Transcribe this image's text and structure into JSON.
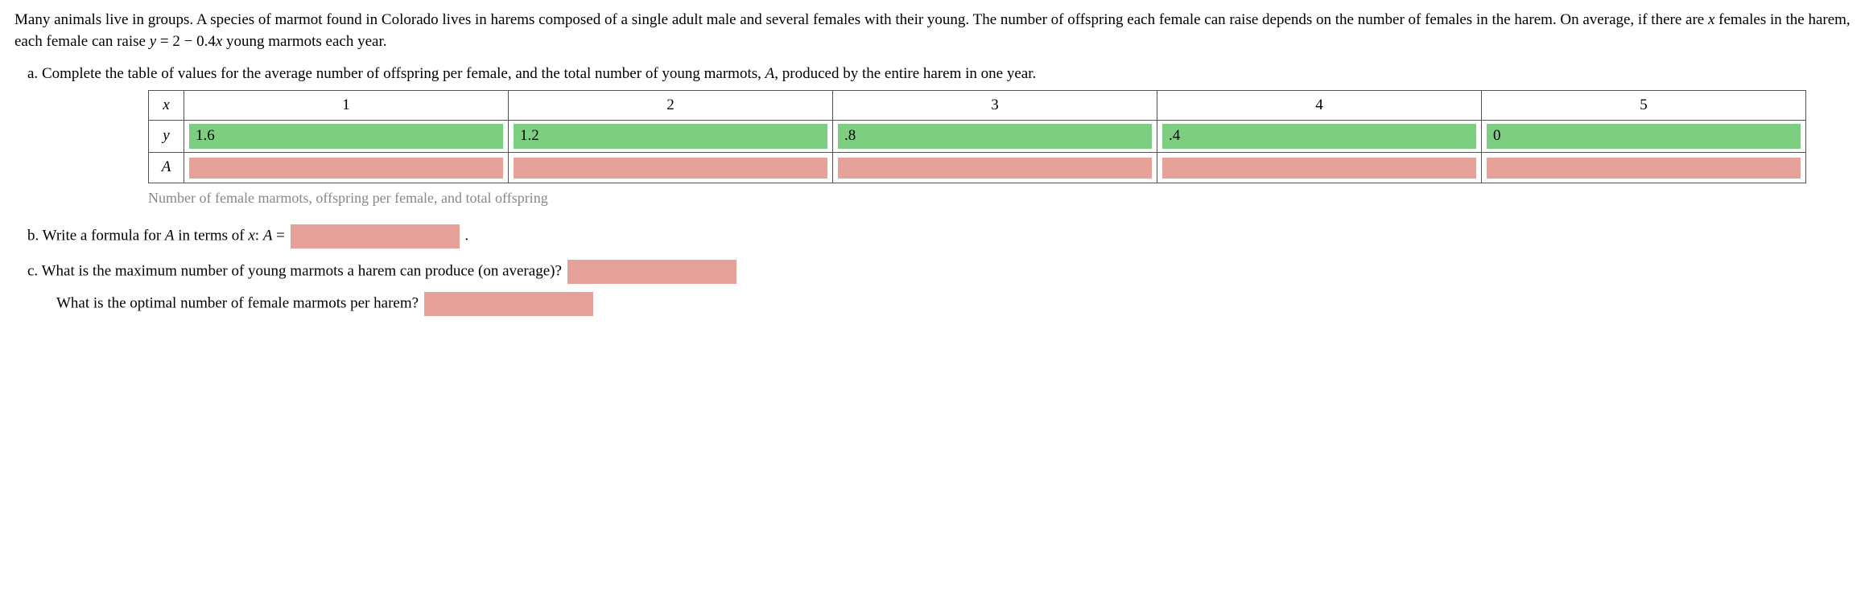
{
  "intro_parts": {
    "p1": "Many animals live in groups. A species of marmot found in Colorado lives in harems composed of a single adult male and several females with their young. The number of offspring each female can raise depends on the number of females in the harem. On average, if there are ",
    "var_x": "x",
    "p2": " females in the harem, each female can raise ",
    "eq_lhs": "y",
    "eq_eq": " = ",
    "eq_rhs_num1": "2 − 0.4",
    "eq_rhs_var": "x",
    "p3": " young marmots each year."
  },
  "part_a": {
    "label": "a. ",
    "text1": "Complete the table of values for the average number of offspring per female, and the total number of young marmots, ",
    "var_A": "A",
    "text2": ", produced by the entire harem in one year."
  },
  "table": {
    "row_headers": {
      "x": "x",
      "y": "y",
      "A": "A"
    },
    "x_values": [
      "1",
      "2",
      "3",
      "4",
      "5"
    ],
    "y_values": [
      "1.6",
      "1.2",
      ".8",
      ".4",
      "0"
    ],
    "A_values": [
      "",
      "",
      "",
      "",
      ""
    ],
    "caption": "Number of female marmots, offspring per female, and total offspring"
  },
  "part_b": {
    "label": "b. ",
    "text1": "Write a formula for ",
    "var_A": "A",
    "text2": " in terms of ",
    "var_x": "x",
    "text3": ": ",
    "var_A2": "A",
    "eq": " = ",
    "period": " ."
  },
  "part_c": {
    "label": "c. ",
    "text1": "What is the maximum number of young marmots a harem can produce (on average)?",
    "text2": "What is the optimal number of female marmots per harem?"
  },
  "colors": {
    "green": "#7dce81",
    "red": "#e6a299",
    "caption_gray": "#888888"
  }
}
